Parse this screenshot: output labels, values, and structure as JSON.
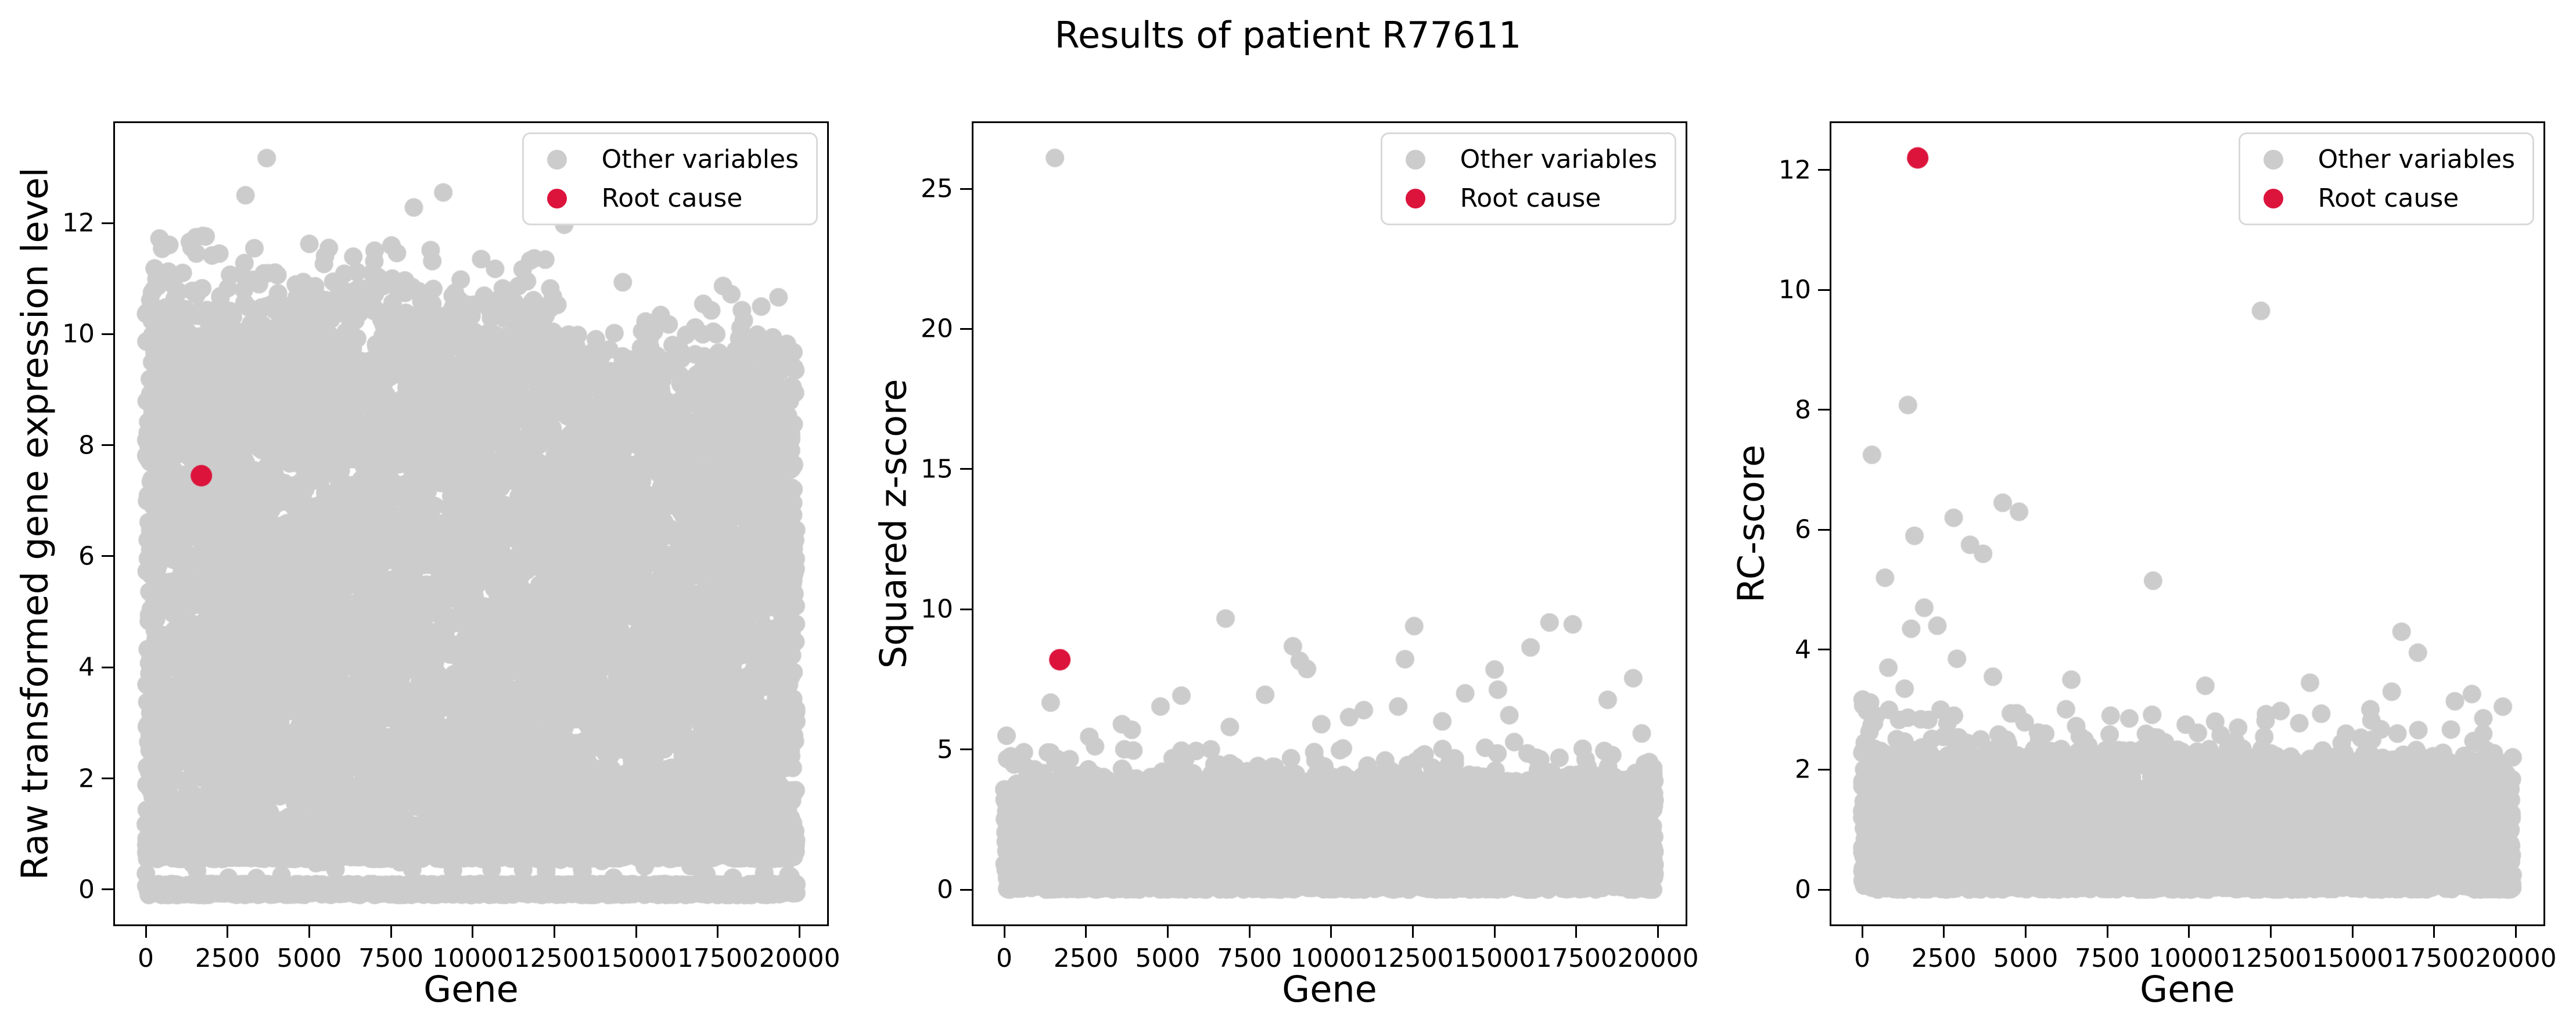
{
  "title": "Results of patient R77611",
  "legend": {
    "other": "Other variables",
    "root": "Root cause"
  },
  "colors": {
    "other": "#cccccc",
    "root": "#dc143c",
    "axis": "#000000",
    "legend_border": "#d9d9d9",
    "background": "#ffffff"
  },
  "chart_data": [
    {
      "type": "scatter",
      "xlabel": "Gene",
      "ylabel": "Raw transformed gene expression level",
      "xlim": [
        -995,
        20895
      ],
      "ylim": [
        -0.66,
        13.83
      ],
      "x_ticks": [
        0,
        2500,
        5000,
        7500,
        10000,
        12500,
        15000,
        17500,
        20000
      ],
      "y_ticks": [
        0,
        2,
        4,
        6,
        8,
        10,
        12
      ],
      "grid": false,
      "legend_entries": [
        "Other variables",
        "Root cause"
      ],
      "legend_position": "upper right",
      "root_cause": {
        "x": 1700,
        "y": 7.45
      },
      "other_outliers": [
        [
          3700,
          13.17
        ],
        [
          3050,
          12.5
        ],
        [
          8200,
          12.28
        ],
        [
          9100,
          12.55
        ],
        [
          12800,
          11.97
        ],
        [
          420,
          11.72
        ],
        [
          1350,
          11.66
        ],
        [
          2250,
          11.45
        ],
        [
          5600,
          11.55
        ],
        [
          7000,
          11.5
        ]
      ],
      "background": {
        "seed": 11,
        "clusters": [
          {
            "kind": "mass",
            "n": 7200,
            "x": [
              0,
              19900
            ],
            "y_base": 1.02,
            "cap_left": 10.32,
            "cap_right": 9.38,
            "x_break": 12800,
            "cap_jitter": 0.3
          },
          {
            "kind": "fringe",
            "n": 270,
            "x": [
              0,
              19900
            ],
            "top_left": 10.32,
            "top_right": 9.42,
            "x_break": 12800,
            "scale": 0.42,
            "max_extra": 1.55
          },
          {
            "kind": "band",
            "n": 1500,
            "x": [
              0,
              19900
            ],
            "y": 0.0,
            "h": 0.1
          },
          {
            "kind": "band",
            "n": 700,
            "x": [
              0,
              19900
            ],
            "y": 0.62,
            "h": 0.07
          },
          {
            "kind": "band",
            "n": 700,
            "x": [
              0,
              19900
            ],
            "y": 0.87,
            "h": 0.07
          },
          {
            "kind": "uniform",
            "n": 80,
            "x": [
              0,
              19900
            ],
            "y": [
              0.2,
              1.0
            ]
          }
        ]
      }
    },
    {
      "type": "scatter",
      "xlabel": "Gene",
      "ylabel": "Squared z-score",
      "xlim": [
        -995,
        20895
      ],
      "ylim": [
        -1.305,
        27.405
      ],
      "x_ticks": [
        0,
        2500,
        5000,
        7500,
        10000,
        12500,
        15000,
        17500,
        20000
      ],
      "y_ticks": [
        0,
        5,
        10,
        15,
        20,
        25
      ],
      "grid": false,
      "legend_entries": [
        "Other variables",
        "Root cause"
      ],
      "legend_position": "upper right",
      "root_cause": {
        "x": 1700,
        "y": 8.2
      },
      "other_outliers": [
        [
          1550,
          26.1
        ],
        [
          6770,
          9.67
        ],
        [
          12540,
          9.4
        ],
        [
          16680,
          9.53
        ],
        [
          17390,
          9.46
        ],
        [
          8830,
          8.68
        ],
        [
          9040,
          8.16
        ],
        [
          9260,
          7.87
        ],
        [
          12260,
          8.22
        ],
        [
          16100,
          8.64
        ],
        [
          15000,
          7.85
        ],
        [
          15100,
          7.13
        ],
        [
          19240,
          7.54
        ],
        [
          1420,
          6.67
        ],
        [
          4780,
          6.53
        ],
        [
          5420,
          6.92
        ],
        [
          7980,
          6.95
        ],
        [
          10550,
          6.15
        ],
        [
          12050,
          6.53
        ],
        [
          15450,
          6.22
        ],
        [
          18460,
          6.77
        ],
        [
          19500,
          5.57
        ],
        [
          70,
          5.49
        ],
        [
          3600,
          5.9
        ],
        [
          3900,
          5.7
        ],
        [
          2600,
          5.45
        ],
        [
          6900,
          5.8
        ],
        [
          9700,
          5.9
        ],
        [
          13400,
          6.0
        ],
        [
          600,
          4.9
        ],
        [
          2000,
          4.65
        ],
        [
          11000,
          6.4
        ],
        [
          14100,
          7.0
        ]
      ],
      "background": {
        "seed": 22,
        "clusters": [
          {
            "kind": "decay",
            "n": 5200,
            "x": [
              0,
              19900
            ],
            "y_max": 3.85,
            "power": 1.25,
            "cap_jitter": 0.3
          },
          {
            "kind": "tail",
            "n": 320,
            "x": [
              0,
              19900
            ],
            "y_start": 3.5,
            "scale": 0.5,
            "max": 1.8
          }
        ]
      }
    },
    {
      "type": "scatter",
      "xlabel": "Gene",
      "ylabel": "RC-score",
      "xlim": [
        -995,
        20895
      ],
      "ylim": [
        -0.61,
        12.81
      ],
      "x_ticks": [
        0,
        2500,
        5000,
        7500,
        10000,
        12500,
        15000,
        17500,
        20000
      ],
      "y_ticks": [
        0,
        2,
        4,
        6,
        8,
        10,
        12
      ],
      "grid": false,
      "legend_entries": [
        "Other variables",
        "Root cause"
      ],
      "legend_position": "upper right",
      "root_cause": {
        "x": 1700,
        "y": 12.2
      },
      "other_outliers": [
        [
          300,
          7.25
        ],
        [
          1400,
          8.08
        ],
        [
          12200,
          9.65
        ],
        [
          2800,
          6.2
        ],
        [
          4300,
          6.45
        ],
        [
          4800,
          6.3
        ],
        [
          1600,
          5.9
        ],
        [
          3300,
          5.75
        ],
        [
          3700,
          5.6
        ],
        [
          700,
          5.2
        ],
        [
          8900,
          5.15
        ],
        [
          1900,
          4.7
        ],
        [
          1500,
          4.35
        ],
        [
          2300,
          4.4
        ],
        [
          2900,
          3.85
        ],
        [
          800,
          3.7
        ],
        [
          4000,
          3.55
        ],
        [
          6400,
          3.5
        ],
        [
          1300,
          3.35
        ],
        [
          16500,
          4.3
        ],
        [
          17000,
          3.95
        ],
        [
          13700,
          3.45
        ],
        [
          16200,
          3.3
        ],
        [
          19600,
          3.05
        ],
        [
          2400,
          3.0
        ],
        [
          10800,
          2.8
        ],
        [
          7600,
          2.9
        ],
        [
          12300,
          2.55
        ],
        [
          18800,
          2.45
        ],
        [
          5600,
          2.6
        ],
        [
          6800,
          2.5
        ],
        [
          9900,
          2.75
        ],
        [
          11500,
          2.7
        ],
        [
          14800,
          2.6
        ],
        [
          15600,
          2.5
        ],
        [
          19000,
          2.6
        ]
      ],
      "background": {
        "seed": 33,
        "clusters": [
          {
            "kind": "decay",
            "n": 4800,
            "x": [
              0,
              19900
            ],
            "y_max": 1.52,
            "power": 1.2,
            "cap_jitter": 0.18
          },
          {
            "kind": "band",
            "n": 560,
            "x": [
              0,
              19900
            ],
            "y": 1.9,
            "h": 0.45
          },
          {
            "kind": "tail",
            "n": 300,
            "x": [
              0,
              19900
            ],
            "y_start": 1.7,
            "scale": 0.5,
            "max": 1.7,
            "left_bias": 1.5
          }
        ]
      }
    }
  ]
}
